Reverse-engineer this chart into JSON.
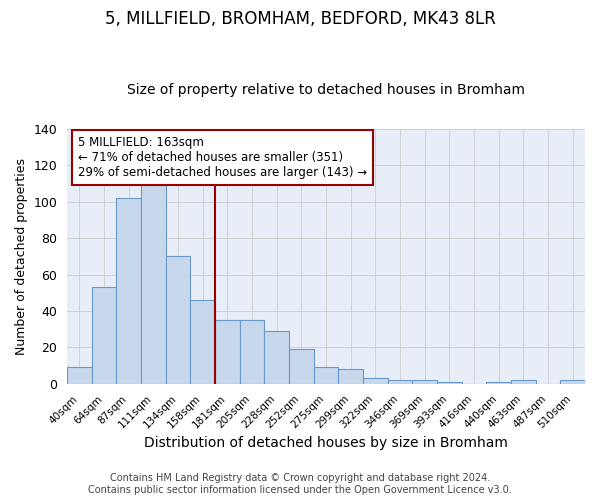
{
  "title": "5, MILLFIELD, BROMHAM, BEDFORD, MK43 8LR",
  "subtitle": "Size of property relative to detached houses in Bromham",
  "xlabel": "Distribution of detached houses by size in Bromham",
  "ylabel": "Number of detached properties",
  "bin_labels": [
    "40sqm",
    "64sqm",
    "87sqm",
    "111sqm",
    "134sqm",
    "158sqm",
    "181sqm",
    "205sqm",
    "228sqm",
    "252sqm",
    "275sqm",
    "299sqm",
    "322sqm",
    "346sqm",
    "369sqm",
    "393sqm",
    "416sqm",
    "440sqm",
    "463sqm",
    "487sqm",
    "510sqm"
  ],
  "bar_heights": [
    9,
    53,
    102,
    111,
    70,
    46,
    35,
    35,
    29,
    19,
    9,
    8,
    3,
    2,
    2,
    1,
    0,
    1,
    2,
    0,
    2
  ],
  "bar_color": "#c8d8ec",
  "bar_edge_color": "#6699cc",
  "vline_x_index": 5,
  "vline_color": "#990000",
  "ylim": [
    0,
    140
  ],
  "plot_bg_color": "#e8eef8",
  "annotation_title": "5 MILLFIELD: 163sqm",
  "annotation_line1": "← 71% of detached houses are smaller (351)",
  "annotation_line2": "29% of semi-detached houses are larger (143) →",
  "annotation_box_color": "#ffffff",
  "annotation_box_edge": "#990000",
  "footer_line1": "Contains HM Land Registry data © Crown copyright and database right 2024.",
  "footer_line2": "Contains public sector information licensed under the Open Government Licence v3.0.",
  "title_fontsize": 12,
  "subtitle_fontsize": 10,
  "xlabel_fontsize": 10,
  "ylabel_fontsize": 9,
  "annotation_fontsize": 8.5,
  "footer_fontsize": 7
}
